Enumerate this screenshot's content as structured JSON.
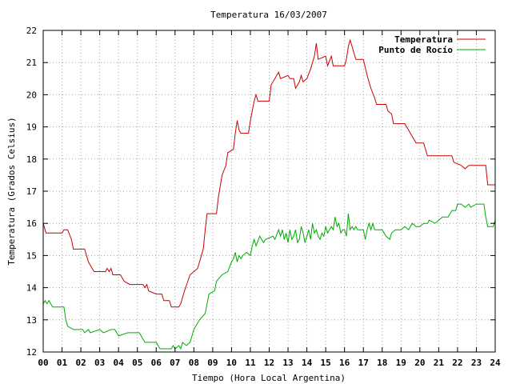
{
  "chart_data": {
    "type": "line",
    "title": "Temperatura 16/03/2007",
    "xlabel": "Tiempo (Hora Local Argentina)",
    "ylabel": "Temperatura (Grados Celsius)",
    "xlim": [
      0,
      24
    ],
    "ylim": [
      12,
      22
    ],
    "grid": true,
    "legend_position": "top-right",
    "x_tick_labels": [
      "00",
      "01",
      "02",
      "03",
      "04",
      "05",
      "06",
      "07",
      "08",
      "09",
      "10",
      "11",
      "12",
      "13",
      "14",
      "15",
      "16",
      "17",
      "18",
      "19",
      "20",
      "21",
      "22",
      "23",
      "24"
    ],
    "y_tick_labels": [
      "12",
      "13",
      "14",
      "15",
      "16",
      "17",
      "18",
      "19",
      "20",
      "21",
      "22"
    ],
    "series": [
      {
        "name": "Temperatura",
        "color": "#cc0000",
        "points": [
          [
            0.0,
            16.0
          ],
          [
            0.15,
            15.7
          ],
          [
            1.0,
            15.7
          ],
          [
            1.1,
            15.8
          ],
          [
            1.3,
            15.8
          ],
          [
            1.5,
            15.5
          ],
          [
            1.6,
            15.2
          ],
          [
            2.2,
            15.2
          ],
          [
            2.4,
            14.8
          ],
          [
            2.6,
            14.6
          ],
          [
            2.7,
            14.5
          ],
          [
            3.3,
            14.5
          ],
          [
            3.4,
            14.6
          ],
          [
            3.5,
            14.5
          ],
          [
            3.6,
            14.6
          ],
          [
            3.7,
            14.4
          ],
          [
            4.1,
            14.4
          ],
          [
            4.3,
            14.2
          ],
          [
            4.6,
            14.1
          ],
          [
            5.3,
            14.1
          ],
          [
            5.4,
            14.0
          ],
          [
            5.5,
            14.1
          ],
          [
            5.6,
            13.9
          ],
          [
            6.0,
            13.8
          ],
          [
            6.3,
            13.8
          ],
          [
            6.4,
            13.6
          ],
          [
            6.7,
            13.6
          ],
          [
            6.8,
            13.4
          ],
          [
            7.2,
            13.4
          ],
          [
            7.3,
            13.5
          ],
          [
            7.5,
            13.9
          ],
          [
            7.8,
            14.4
          ],
          [
            8.2,
            14.6
          ],
          [
            8.5,
            15.2
          ],
          [
            8.6,
            15.8
          ],
          [
            8.7,
            16.3
          ],
          [
            9.2,
            16.3
          ],
          [
            9.3,
            16.8
          ],
          [
            9.5,
            17.5
          ],
          [
            9.7,
            17.8
          ],
          [
            9.8,
            18.2
          ],
          [
            10.1,
            18.3
          ],
          [
            10.2,
            18.8
          ],
          [
            10.3,
            19.2
          ],
          [
            10.4,
            18.9
          ],
          [
            10.5,
            18.8
          ],
          [
            10.9,
            18.8
          ],
          [
            11.0,
            19.2
          ],
          [
            11.2,
            19.8
          ],
          [
            11.3,
            20.0
          ],
          [
            11.4,
            19.8
          ],
          [
            12.0,
            19.8
          ],
          [
            12.1,
            20.3
          ],
          [
            12.4,
            20.6
          ],
          [
            12.5,
            20.7
          ],
          [
            12.6,
            20.5
          ],
          [
            13.0,
            20.6
          ],
          [
            13.1,
            20.5
          ],
          [
            13.3,
            20.5
          ],
          [
            13.4,
            20.2
          ],
          [
            13.6,
            20.4
          ],
          [
            13.7,
            20.6
          ],
          [
            13.8,
            20.4
          ],
          [
            14.0,
            20.5
          ],
          [
            14.2,
            20.8
          ],
          [
            14.4,
            21.2
          ],
          [
            14.5,
            21.6
          ],
          [
            14.6,
            21.1
          ],
          [
            15.0,
            21.2
          ],
          [
            15.1,
            20.9
          ],
          [
            15.3,
            21.2
          ],
          [
            15.4,
            20.9
          ],
          [
            16.0,
            20.9
          ],
          [
            16.1,
            21.1
          ],
          [
            16.2,
            21.5
          ],
          [
            16.3,
            21.7
          ],
          [
            16.4,
            21.5
          ],
          [
            16.5,
            21.3
          ],
          [
            16.6,
            21.1
          ],
          [
            17.0,
            21.1
          ],
          [
            17.2,
            20.6
          ],
          [
            17.4,
            20.2
          ],
          [
            17.6,
            19.9
          ],
          [
            17.7,
            19.7
          ],
          [
            18.2,
            19.7
          ],
          [
            18.3,
            19.5
          ],
          [
            18.5,
            19.4
          ],
          [
            18.6,
            19.1
          ],
          [
            19.2,
            19.1
          ],
          [
            19.4,
            18.9
          ],
          [
            19.6,
            18.7
          ],
          [
            19.8,
            18.5
          ],
          [
            20.2,
            18.5
          ],
          [
            20.3,
            18.3
          ],
          [
            20.4,
            18.1
          ],
          [
            21.7,
            18.1
          ],
          [
            21.8,
            17.9
          ],
          [
            22.2,
            17.8
          ],
          [
            22.4,
            17.7
          ],
          [
            22.6,
            17.8
          ],
          [
            23.5,
            17.8
          ],
          [
            23.6,
            17.2
          ],
          [
            24.0,
            17.2
          ]
        ]
      },
      {
        "name": "Punto de Rocío",
        "color": "#00aa00",
        "points": [
          [
            0.0,
            13.5
          ],
          [
            0.1,
            13.6
          ],
          [
            0.2,
            13.5
          ],
          [
            0.3,
            13.6
          ],
          [
            0.4,
            13.5
          ],
          [
            0.5,
            13.4
          ],
          [
            1.1,
            13.4
          ],
          [
            1.2,
            13.0
          ],
          [
            1.3,
            12.8
          ],
          [
            1.6,
            12.7
          ],
          [
            2.1,
            12.7
          ],
          [
            2.2,
            12.6
          ],
          [
            2.4,
            12.7
          ],
          [
            2.5,
            12.6
          ],
          [
            3.0,
            12.7
          ],
          [
            3.2,
            12.6
          ],
          [
            3.6,
            12.7
          ],
          [
            3.8,
            12.7
          ],
          [
            4.0,
            12.5
          ],
          [
            4.5,
            12.6
          ],
          [
            5.1,
            12.6
          ],
          [
            5.2,
            12.5
          ],
          [
            5.4,
            12.3
          ],
          [
            6.0,
            12.3
          ],
          [
            6.1,
            12.2
          ],
          [
            6.2,
            12.1
          ],
          [
            6.8,
            12.1
          ],
          [
            6.9,
            12.2
          ],
          [
            7.0,
            12.1
          ],
          [
            7.2,
            12.2
          ],
          [
            7.3,
            12.1
          ],
          [
            7.4,
            12.3
          ],
          [
            7.6,
            12.2
          ],
          [
            7.8,
            12.3
          ],
          [
            8.0,
            12.7
          ],
          [
            8.2,
            12.9
          ],
          [
            8.3,
            13.0
          ],
          [
            8.6,
            13.2
          ],
          [
            8.7,
            13.5
          ],
          [
            8.8,
            13.8
          ],
          [
            9.1,
            13.9
          ],
          [
            9.2,
            14.2
          ],
          [
            9.5,
            14.4
          ],
          [
            9.8,
            14.5
          ],
          [
            10.0,
            14.8
          ],
          [
            10.1,
            14.9
          ],
          [
            10.2,
            15.1
          ],
          [
            10.3,
            14.8
          ],
          [
            10.4,
            15.0
          ],
          [
            10.5,
            14.9
          ],
          [
            10.6,
            15.0
          ],
          [
            10.8,
            15.1
          ],
          [
            11.0,
            15.0
          ],
          [
            11.1,
            15.3
          ],
          [
            11.2,
            15.5
          ],
          [
            11.3,
            15.3
          ],
          [
            11.5,
            15.6
          ],
          [
            11.7,
            15.4
          ],
          [
            11.8,
            15.5
          ],
          [
            12.2,
            15.6
          ],
          [
            12.3,
            15.5
          ],
          [
            12.5,
            15.8
          ],
          [
            12.6,
            15.6
          ],
          [
            12.7,
            15.8
          ],
          [
            12.8,
            15.5
          ],
          [
            12.9,
            15.7
          ],
          [
            13.0,
            15.4
          ],
          [
            13.1,
            15.8
          ],
          [
            13.2,
            15.5
          ],
          [
            13.3,
            15.6
          ],
          [
            13.4,
            15.8
          ],
          [
            13.5,
            15.4
          ],
          [
            13.6,
            15.5
          ],
          [
            13.7,
            15.9
          ],
          [
            13.8,
            15.7
          ],
          [
            13.9,
            15.4
          ],
          [
            14.0,
            15.6
          ],
          [
            14.1,
            15.8
          ],
          [
            14.2,
            15.5
          ],
          [
            14.3,
            16.0
          ],
          [
            14.4,
            15.7
          ],
          [
            14.5,
            15.8
          ],
          [
            14.6,
            15.6
          ],
          [
            14.7,
            15.5
          ],
          [
            14.8,
            15.7
          ],
          [
            14.9,
            15.6
          ],
          [
            15.0,
            15.9
          ],
          [
            15.1,
            15.7
          ],
          [
            15.2,
            15.8
          ],
          [
            15.3,
            15.9
          ],
          [
            15.4,
            15.8
          ],
          [
            15.5,
            16.2
          ],
          [
            15.6,
            15.9
          ],
          [
            15.7,
            16.0
          ],
          [
            15.8,
            15.7
          ],
          [
            15.9,
            15.8
          ],
          [
            16.0,
            15.8
          ],
          [
            16.1,
            15.6
          ],
          [
            16.2,
            16.3
          ],
          [
            16.3,
            15.8
          ],
          [
            16.4,
            15.9
          ],
          [
            16.5,
            15.8
          ],
          [
            16.6,
            15.9
          ],
          [
            16.7,
            15.8
          ],
          [
            17.0,
            15.8
          ],
          [
            17.1,
            15.5
          ],
          [
            17.2,
            15.8
          ],
          [
            17.3,
            16.0
          ],
          [
            17.4,
            15.8
          ],
          [
            17.5,
            16.0
          ],
          [
            17.6,
            15.8
          ],
          [
            18.0,
            15.8
          ],
          [
            18.2,
            15.6
          ],
          [
            18.4,
            15.5
          ],
          [
            18.5,
            15.7
          ],
          [
            18.7,
            15.8
          ],
          [
            19.0,
            15.8
          ],
          [
            19.2,
            15.9
          ],
          [
            19.4,
            15.8
          ],
          [
            19.6,
            16.0
          ],
          [
            19.8,
            15.9
          ],
          [
            20.0,
            15.9
          ],
          [
            20.2,
            16.0
          ],
          [
            20.4,
            16.0
          ],
          [
            20.5,
            16.1
          ],
          [
            20.8,
            16.0
          ],
          [
            21.0,
            16.1
          ],
          [
            21.2,
            16.2
          ],
          [
            21.5,
            16.2
          ],
          [
            21.7,
            16.4
          ],
          [
            21.9,
            16.4
          ],
          [
            22.0,
            16.6
          ],
          [
            22.2,
            16.6
          ],
          [
            22.4,
            16.5
          ],
          [
            22.6,
            16.6
          ],
          [
            22.7,
            16.5
          ],
          [
            23.0,
            16.6
          ],
          [
            23.4,
            16.6
          ],
          [
            23.5,
            16.2
          ],
          [
            23.6,
            15.9
          ],
          [
            23.9,
            15.9
          ],
          [
            24.0,
            16.1
          ]
        ]
      }
    ]
  }
}
